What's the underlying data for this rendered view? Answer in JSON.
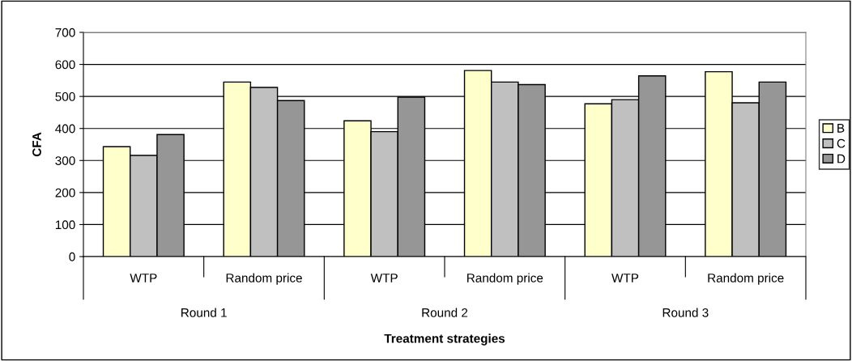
{
  "chart_data": {
    "type": "bar",
    "ylabel": "CFA",
    "xlabel": "Treatment strategies",
    "categories": [
      "WTP",
      "Random price",
      "WTP",
      "Random price",
      "WTP",
      "Random price"
    ],
    "annotations": [
      "Round 1",
      "Round 2",
      "Round 3"
    ],
    "series": [
      {
        "name": "B",
        "color": "#ffffcc",
        "values": [
          343,
          545,
          424,
          581,
          477,
          577
        ]
      },
      {
        "name": "C",
        "color": "#c0c0c0",
        "values": [
          316,
          528,
          390,
          545,
          490,
          480
        ]
      },
      {
        "name": "D",
        "color": "#969696",
        "values": [
          381,
          487,
          498,
          537,
          564,
          545
        ]
      }
    ],
    "ylim": [
      0,
      700
    ],
    "yticks": [
      0,
      100,
      200,
      300,
      400,
      500,
      600,
      700
    ],
    "grid": "y",
    "legend": "right"
  }
}
